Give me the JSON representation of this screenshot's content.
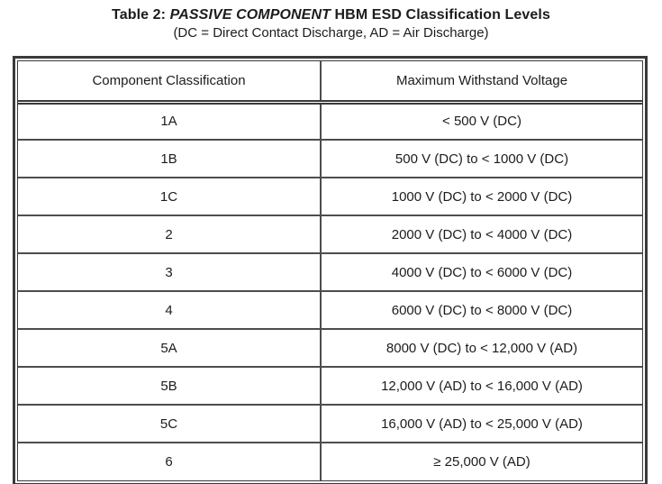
{
  "title": {
    "prefix": "Table 2: ",
    "emphasis": "PASSIVE COMPONENT",
    "suffix": " HBM ESD Classification Levels",
    "subtitle": "(DC = Direct Contact Discharge, AD = Air Discharge)"
  },
  "table": {
    "headers": [
      "Component Classification",
      "Maximum Withstand Voltage"
    ],
    "rows": [
      {
        "classification": "1A",
        "voltage": "< 500 V (DC)"
      },
      {
        "classification": "1B",
        "voltage": "500 V (DC) to < 1000 V (DC)"
      },
      {
        "classification": "1C",
        "voltage": "1000 V (DC) to < 2000 V (DC)"
      },
      {
        "classification": "2",
        "voltage": "2000 V (DC) to < 4000 V (DC)"
      },
      {
        "classification": "3",
        "voltage": "4000 V (DC) to < 6000 V (DC)"
      },
      {
        "classification": "4",
        "voltage": "6000 V (DC) to < 8000 V (DC)"
      },
      {
        "classification": "5A",
        "voltage": "8000 V (DC) to < 12,000 V (AD)"
      },
      {
        "classification": "5B",
        "voltage": "12,000 V (AD) to < 16,000 V (AD)"
      },
      {
        "classification": "5C",
        "voltage": "16,000 V (AD) to < 25,000 V (AD)"
      },
      {
        "classification": "6",
        "voltage": "≥ 25,000 V (AD)"
      }
    ],
    "colors": {
      "border": "#3a3a3a",
      "inner_line": "#4d4d4d",
      "text": "#1c1c1c",
      "background": "#ffffff"
    }
  }
}
